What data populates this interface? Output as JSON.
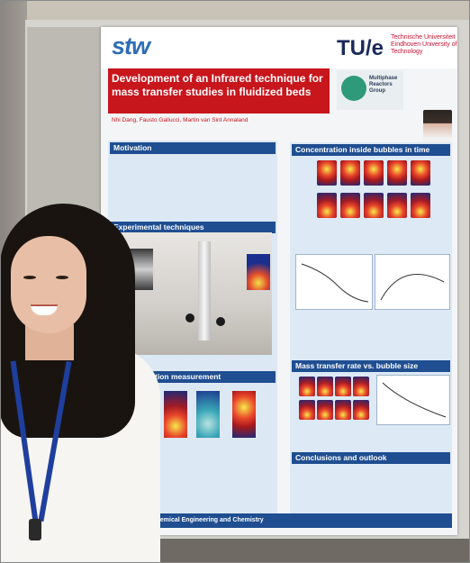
{
  "poster": {
    "logo_left": "stw",
    "logo_right": "TU/e",
    "university": "Technische Universiteit Eindhoven University of Technology",
    "title": "Development of an Infrared technique for mass transfer studies in fluidized beds",
    "authors": "Nhi Dang, Fausto Gallucci, Martin van Sint Annaland",
    "group": "Multiphase Reactors Group",
    "sections": {
      "motivation": "Motivation",
      "experimental": "Experimental techniques",
      "measurement": "tion measurement",
      "concentration": "Concentration inside bubbles in time",
      "mass_transfer": "Mass transfer rate vs. bubble size",
      "conclusions": "Conclusions and outlook"
    },
    "footer": "of Chemical Engineering and Chemistry"
  },
  "colors": {
    "title_red": "#c8161d",
    "section_blue": "#1f4e91",
    "panel_light_blue": "#dce8f4",
    "hair": "#1a1411",
    "lanyard": "#1f3f9e"
  }
}
